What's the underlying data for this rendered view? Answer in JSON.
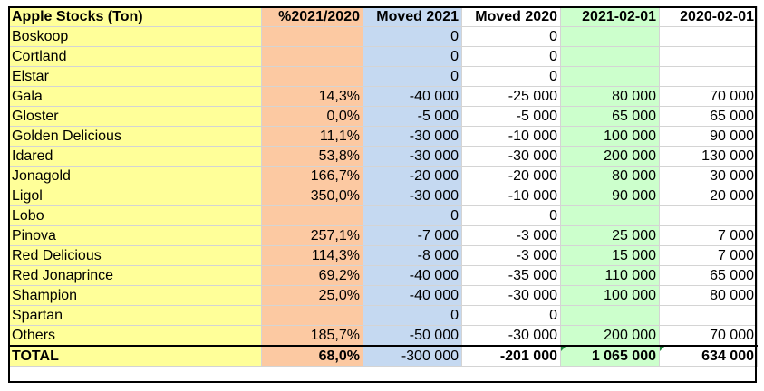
{
  "header": [
    "Apple Stocks (Ton)",
    "%2021/2020",
    "Moved 2021",
    "Moved 2020",
    "2021-02-01",
    "2020-02-01"
  ],
  "rows": [
    [
      "Boskoop",
      "",
      "0",
      "0",
      "",
      ""
    ],
    [
      "Cortland",
      "",
      "0",
      "0",
      "",
      ""
    ],
    [
      "Elstar",
      "",
      "0",
      "0",
      "",
      ""
    ],
    [
      "Gala",
      "14,3%",
      "-40 000",
      "-25 000",
      "80 000",
      "70 000"
    ],
    [
      "Gloster",
      "0,0%",
      "-5 000",
      "-5 000",
      "65 000",
      "65 000"
    ],
    [
      "Golden Delicious",
      "11,1%",
      "-30 000",
      "-10 000",
      "100 000",
      "90 000"
    ],
    [
      "Idared",
      "53,8%",
      "-30 000",
      "-30 000",
      "200 000",
      "130 000"
    ],
    [
      "Jonagold",
      "166,7%",
      "-20 000",
      "-20 000",
      "80 000",
      "30 000"
    ],
    [
      "Ligol",
      "350,0%",
      "-30 000",
      "-10 000",
      "90 000",
      "20 000"
    ],
    [
      "Lobo",
      "",
      "0",
      "0",
      "",
      ""
    ],
    [
      "Pinova",
      "257,1%",
      "-7 000",
      "-3 000",
      "25 000",
      "7 000"
    ],
    [
      "Red Delicious",
      "114,3%",
      "-8 000",
      "-3 000",
      "15 000",
      "7 000"
    ],
    [
      "Red Jonaprince",
      "69,2%",
      "-40 000",
      "-35 000",
      "110 000",
      "65 000"
    ],
    [
      "Shampion",
      "25,0%",
      "-40 000",
      "-30 000",
      "100 000",
      "80 000"
    ],
    [
      "Spartan",
      "",
      "0",
      "0",
      "",
      ""
    ],
    [
      "Others",
      "185,7%",
      "-50 000",
      "-30 000",
      "200 000",
      "70 000"
    ]
  ],
  "total": [
    "TOTAL",
    "68,0%",
    "-300 000",
    "-201 000",
    "1 065 000",
    "634 000"
  ],
  "colors": {
    "name_column": "#ffff99",
    "percent_column": "#fcc9a2",
    "moved_2021_column": "#c5d9f1",
    "date_2021_column": "#ccffcc",
    "error_marker": "#1e8a3c"
  }
}
